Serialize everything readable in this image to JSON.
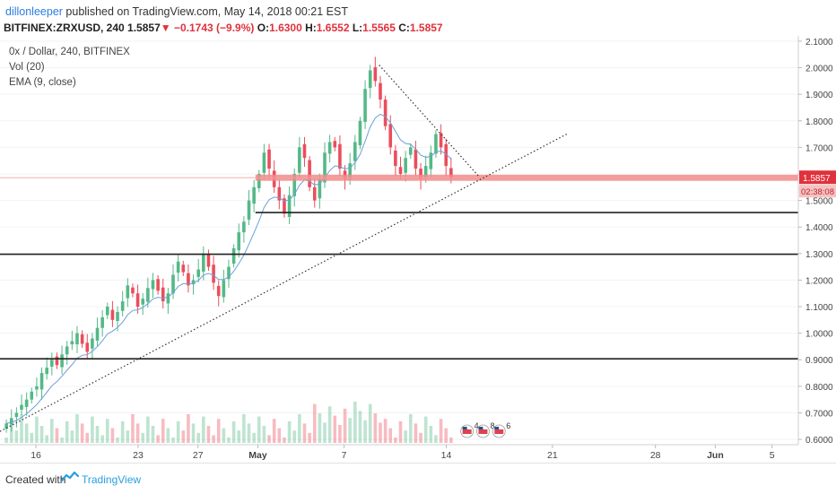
{
  "header": {
    "author": "dillonleeper",
    "published": "published on TradingView.com, May 14, 2018 00:21 EST",
    "symbol": "BITFINEX:ZRXUSD, 240",
    "last": "1.5857",
    "arrow": "▼",
    "change": "−0.1743 (−9.9%)",
    "o_label": "O:",
    "o_value": "1.6300",
    "h_label": "H:",
    "h_value": "1.6552",
    "l_label": "L:",
    "l_value": "1.5565",
    "c_label": "C:",
    "c_value": "1.5857"
  },
  "legend": {
    "title": "0x / Dollar, 240, BITFINEX",
    "vol": "Vol (20)",
    "ema": "EMA (9, close)"
  },
  "price_label": "1.5857",
  "countdown_label": "02:38:08",
  "footer": {
    "created": "Created with",
    "brand": "TradingView"
  },
  "colors": {
    "up": "#53b987",
    "down": "#eb4d5c",
    "support_band": "#f28b8b",
    "axis_text": "#444444",
    "ema": "#6aa0d8"
  },
  "chart_data": {
    "type": "candlestick",
    "symbol": "ZRXUSD",
    "exchange": "BITFINEX",
    "timeframe": "240",
    "ylim": [
      0.58,
      2.12
    ],
    "y_ticks": [
      2.1,
      2.0,
      1.9,
      1.8,
      1.7,
      1.6,
      1.5,
      1.4,
      1.3,
      1.2,
      1.1,
      1.0,
      0.9,
      0.8,
      0.7,
      0.6
    ],
    "y_tick_labels": [
      "2.1000",
      "2.0000",
      "1.9000",
      "1.8000",
      "1.7000",
      "1.6000",
      "1.5000",
      "1.4000",
      "1.3000",
      "1.2000",
      "1.1000",
      "1.0000",
      "0.9000",
      "0.8000",
      "0.7000",
      "0.6000"
    ],
    "x_labels": [
      "16",
      "23",
      "27",
      "May",
      "7",
      "14",
      "21",
      "28",
      "Jun",
      "5"
    ],
    "ema_period": 9,
    "close_path": [
      0.66,
      0.68,
      0.7,
      0.73,
      0.75,
      0.78,
      0.8,
      0.85,
      0.87,
      0.9,
      0.88,
      0.92,
      0.95,
      0.97,
      1.0,
      0.96,
      0.93,
      0.98,
      1.02,
      1.06,
      1.1,
      1.05,
      1.08,
      1.12,
      1.18,
      1.15,
      1.1,
      1.13,
      1.17,
      1.2,
      1.16,
      1.12,
      1.15,
      1.22,
      1.27,
      1.23,
      1.18,
      1.2,
      1.24,
      1.3,
      1.25,
      1.19,
      1.14,
      1.2,
      1.25,
      1.32,
      1.38,
      1.42,
      1.5,
      1.55,
      1.6,
      1.68,
      1.62,
      1.55,
      1.5,
      1.45,
      1.52,
      1.6,
      1.7,
      1.66,
      1.55,
      1.5,
      1.58,
      1.68,
      1.72,
      1.7,
      1.62,
      1.58,
      1.64,
      1.72,
      1.8,
      1.92,
      1.99,
      1.95,
      1.88,
      1.78,
      1.7,
      1.63,
      1.6,
      1.66,
      1.7,
      1.62,
      1.58,
      1.63,
      1.68,
      1.75,
      1.7,
      1.63,
      1.5857
    ],
    "horizontal_levels": [
      1.4545,
      1.2975,
      0.9035
    ],
    "support_zone": [
      1.574,
      1.597
    ],
    "trendlines": [
      {
        "style": "dotted",
        "from": [
          0.0,
          0.63
        ],
        "to": [
          0.71,
          1.75
        ]
      },
      {
        "style": "dotted",
        "from": [
          0.475,
          2.01
        ],
        "to": [
          0.6,
          1.59
        ]
      }
    ],
    "events": [
      {
        "label": "4"
      },
      {
        "label": "8"
      },
      {
        "label": "6"
      }
    ]
  }
}
